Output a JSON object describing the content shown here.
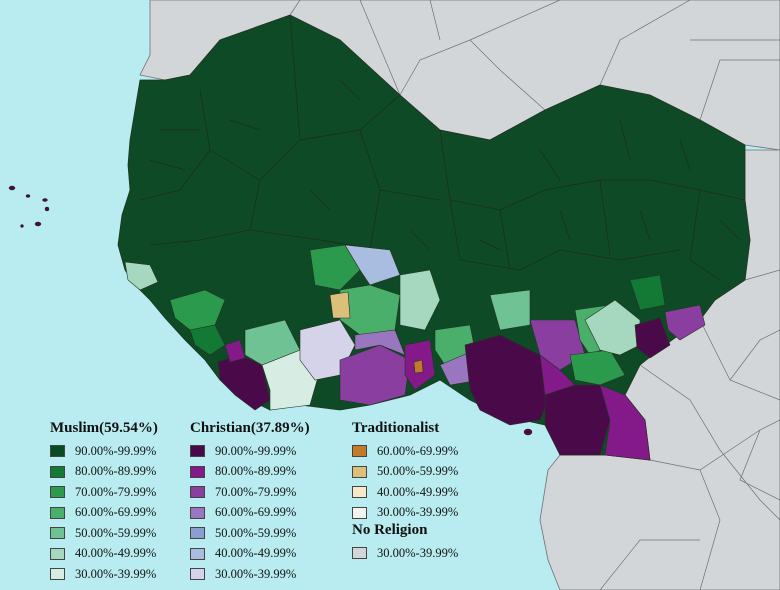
{
  "legends": {
    "muslim": {
      "title": "Muslim(59.54%)",
      "items": [
        {
          "label": "90.00%-99.99%",
          "color": "#0a4a22"
        },
        {
          "label": "80.00%-89.99%",
          "color": "#137a36"
        },
        {
          "label": "70.00%-79.99%",
          "color": "#2c9a4c"
        },
        {
          "label": "60.00%-69.99%",
          "color": "#4aaf6a"
        },
        {
          "label": "50.00%-59.99%",
          "color": "#6fc293"
        },
        {
          "label": "40.00%-49.99%",
          "color": "#a6d8c0"
        },
        {
          "label": "30.00%-39.99%",
          "color": "#d7ece3"
        }
      ]
    },
    "christian": {
      "title": "Christian(37.89%)",
      "items": [
        {
          "label": "90.00%-99.99%",
          "color": "#4a0a4a"
        },
        {
          "label": "80.00%-89.99%",
          "color": "#84198a"
        },
        {
          "label": "70.00%-79.99%",
          "color": "#8a3fa0"
        },
        {
          "label": "60.00%-69.99%",
          "color": "#9a76c0"
        },
        {
          "label": "50.00%-59.99%",
          "color": "#8c9ed0"
        },
        {
          "label": "40.00%-49.99%",
          "color": "#a9bde0"
        },
        {
          "label": "30.00%-39.99%",
          "color": "#d4d3ea"
        }
      ]
    },
    "traditionalist": {
      "title": "Traditionalist",
      "items": [
        {
          "label": "60.00%-69.99%",
          "color": "#c27a2c"
        },
        {
          "label": "50.00%-59.99%",
          "color": "#dcbf79"
        },
        {
          "label": "40.00%-49.99%",
          "color": "#f3e9c9"
        },
        {
          "label": "30.00%-39.99%",
          "color": "#f1f4ec"
        }
      ]
    },
    "no_religion": {
      "title": "No Religion",
      "items": [
        {
          "label": "30.00%-39.99%",
          "color": "#d3d6d8"
        }
      ]
    }
  },
  "colors": {
    "ocean": "#b8ecf0",
    "other_land": "#d3d6d8",
    "borders": "#1f2a1f"
  }
}
